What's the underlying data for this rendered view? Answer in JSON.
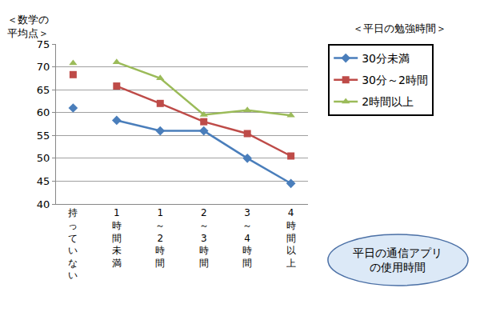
{
  "chart_data": {
    "type": "line",
    "y_label": "＜数学の\n平均点＞",
    "legend_title": "＜平日の勉強時間＞",
    "x_label": "平日の通信アプリ\nの使用時間",
    "categories": [
      "持っていない",
      "1時間未満",
      "1～2時間",
      "2～3時間",
      "3～4時間",
      "4時間以上"
    ],
    "series": [
      {
        "name": "30分未満",
        "color": "#4a7ebb",
        "marker": "diamond",
        "values": [
          61,
          58.3,
          56,
          56,
          50,
          44.5
        ]
      },
      {
        "name": "30分～2時間",
        "color": "#be4b48",
        "marker": "square",
        "values": [
          68.3,
          65.8,
          62,
          58,
          55.4,
          50.5
        ]
      },
      {
        "name": "2時間以上",
        "color": "#9bbb59",
        "marker": "triangle-up",
        "values": [
          70.8,
          71,
          67.5,
          59.5,
          60.5,
          59.4
        ]
      }
    ],
    "ylim": [
      40,
      75
    ],
    "yticks": [
      40,
      45,
      50,
      55,
      60,
      65,
      70,
      75
    ],
    "grid": true,
    "legend": "right"
  }
}
